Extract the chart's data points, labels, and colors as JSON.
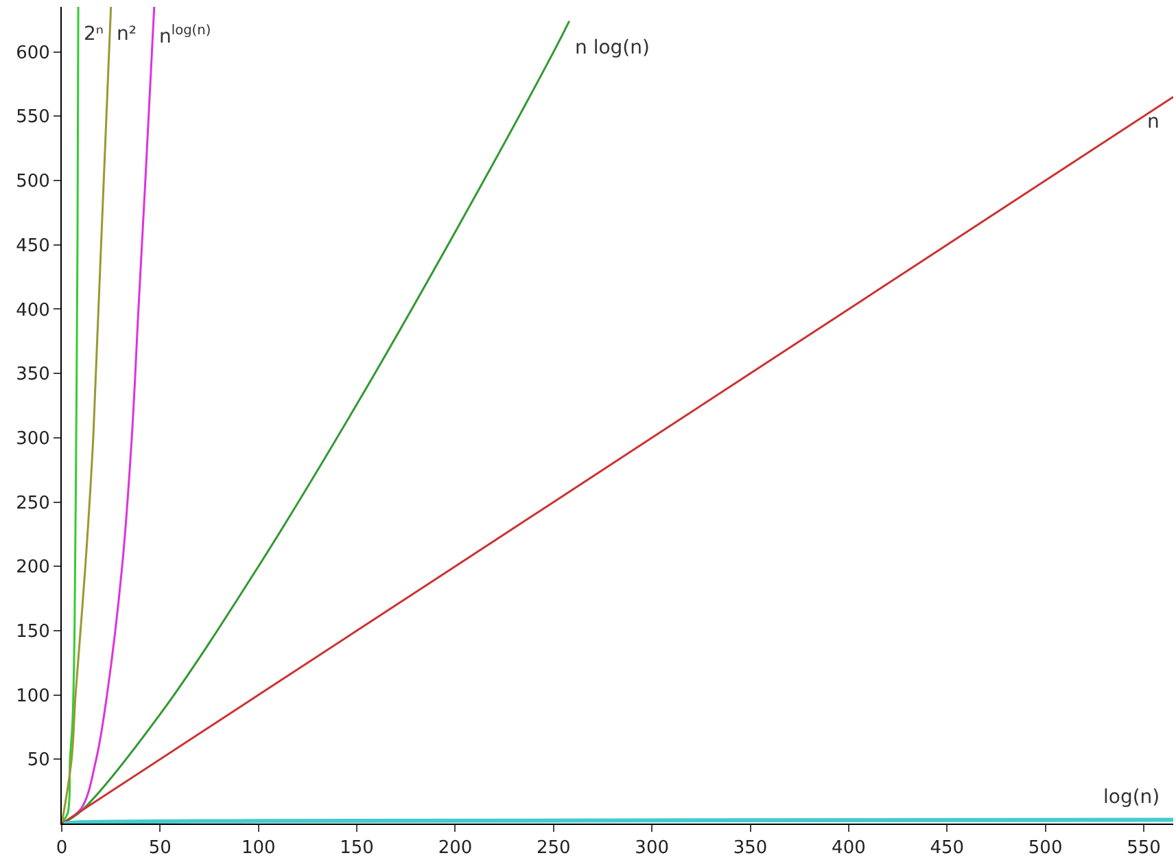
{
  "chart_data": {
    "type": "line",
    "series": [
      {
        "name": "2ⁿ",
        "color": "#33cc33",
        "x": [
          0,
          3,
          4.2,
          5.5,
          6.5,
          7,
          7.5,
          8,
          8.4
        ],
        "values": [
          1,
          8,
          50,
          80,
          150,
          235,
          330,
          450,
          635
        ]
      },
      {
        "name": "n²",
        "color": "#999933",
        "x": [
          0,
          5,
          7,
          12,
          16,
          20,
          25
        ],
        "values": [
          0,
          50,
          100,
          200,
          300,
          450,
          635
        ]
      },
      {
        "name": "n$^{log(n)}$",
        "color": "#dd33dd",
        "x": [
          0,
          10,
          17.5,
          23,
          30.7,
          35.6,
          39,
          42.5,
          47
        ],
        "values": [
          0,
          12,
          50,
          100,
          200,
          300,
          400,
          500,
          635
        ]
      },
      {
        "name": "n log(n)",
        "color": "#339933",
        "x": [
          0,
          10,
          50,
          100,
          150,
          200,
          250,
          258
        ],
        "values": [
          0,
          10,
          85,
          200,
          326,
          460,
          600,
          624
        ]
      },
      {
        "name": "n",
        "color": "#cc3333",
        "x": [
          0,
          100,
          200,
          300,
          400,
          500,
          565
        ],
        "values": [
          0,
          100,
          200,
          300,
          400,
          500,
          565
        ]
      },
      {
        "name": "log(n)",
        "color": "#44cccc",
        "x": [
          1,
          10,
          100,
          565
        ],
        "values": [
          0,
          1,
          2,
          3
        ]
      }
    ],
    "xlim": [
      0,
      565
    ],
    "ylim": [
      0,
      635
    ],
    "xticks": [
      0,
      50,
      100,
      150,
      200,
      250,
      300,
      350,
      400,
      450,
      500,
      550
    ],
    "yticks": [
      50,
      100,
      150,
      200,
      250,
      300,
      350,
      400,
      450,
      500,
      550,
      600
    ],
    "grid": false,
    "legend": false,
    "marker": "none",
    "line_style": "solid"
  }
}
